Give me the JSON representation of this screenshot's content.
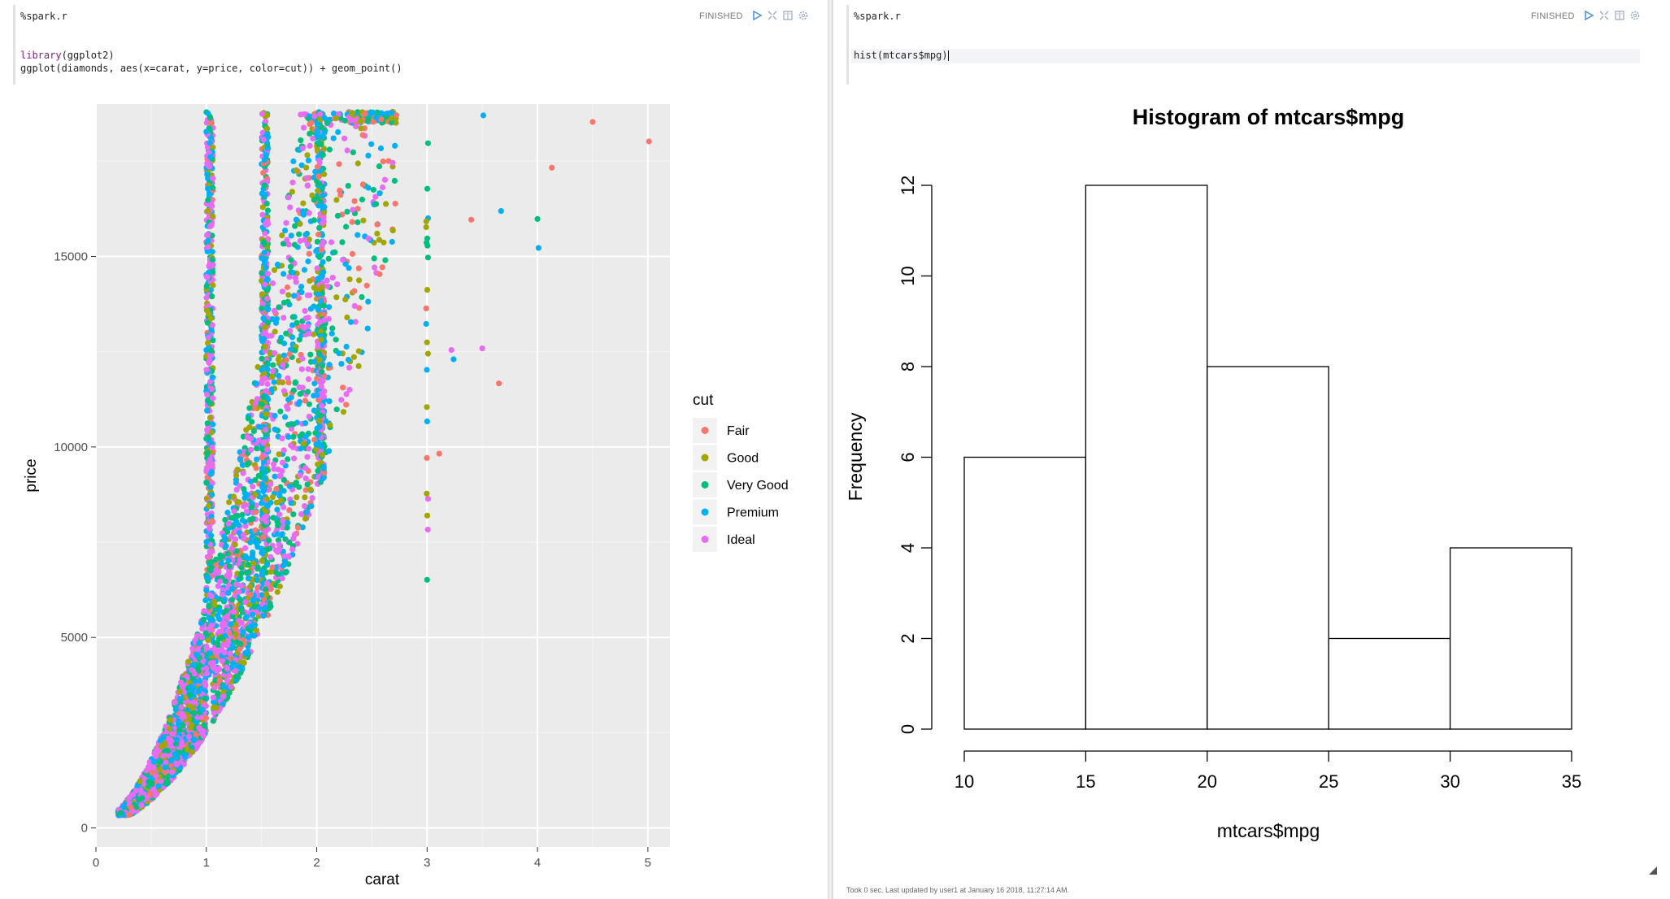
{
  "left_paragraph": {
    "interpreter": "%spark.r",
    "status": "FINISHED",
    "code": {
      "line1_fn": "library",
      "line1_rest": "(ggplot2)",
      "line2": "ggplot(diamonds, aes(x=carat, y=price, color=cut)) + geom_point()"
    },
    "icons": [
      "run-icon",
      "expand-icon",
      "book-icon",
      "gear-icon"
    ]
  },
  "right_paragraph": {
    "interpreter": "%spark.r",
    "status": "FINISHED",
    "code": {
      "line1": "hist(mtcars$mpg)"
    },
    "icons": [
      "run-icon",
      "expand-icon",
      "book-icon",
      "gear-icon"
    ],
    "footer": "Took 0 sec. Last updated by user1 at January 16 2018, 11:27:14 AM."
  },
  "colors": {
    "fair": "#F8766D",
    "good": "#A3A500",
    "very_good": "#00BF7D",
    "premium": "#00B0F6",
    "ideal": "#E76BF3",
    "panel_bg": "#EBEBEB",
    "accent": "#4a90d9"
  },
  "chart_data": [
    {
      "type": "scatter",
      "title": "",
      "xlabel": "carat",
      "ylabel": "price",
      "xlim": [
        0,
        5.2
      ],
      "ylim": [
        -500,
        19000
      ],
      "x_ticks": [
        0,
        1,
        2,
        3,
        4,
        5
      ],
      "y_ticks": [
        0,
        5000,
        10000,
        15000
      ],
      "grid": true,
      "legend": {
        "title": "cut",
        "placement": "right",
        "entries": [
          "Fair",
          "Good",
          "Very Good",
          "Premium",
          "Ideal"
        ]
      },
      "notable_points": [
        {
          "x": 5.01,
          "y": 18018,
          "series": "Fair"
        },
        {
          "x": 4.5,
          "y": 18531,
          "series": "Fair"
        },
        {
          "x": 4.13,
          "y": 17329,
          "series": "Fair"
        },
        {
          "x": 4.0,
          "y": 15984,
          "series": "Very Good"
        },
        {
          "x": 4.01,
          "y": 15223,
          "series": "Premium"
        },
        {
          "x": 3.67,
          "y": 16193,
          "series": "Premium"
        },
        {
          "x": 3.51,
          "y": 18701,
          "series": "Premium"
        },
        {
          "x": 3.4,
          "y": 15964,
          "series": "Fair"
        },
        {
          "x": 3.5,
          "y": 12587,
          "series": "Ideal"
        },
        {
          "x": 3.22,
          "y": 12545,
          "series": "Ideal"
        },
        {
          "x": 3.24,
          "y": 12300,
          "series": "Premium"
        },
        {
          "x": 3.65,
          "y": 11668,
          "series": "Fair"
        },
        {
          "x": 3.11,
          "y": 9823,
          "series": "Fair"
        },
        {
          "x": 3.0,
          "y": 6512,
          "series": "Very Good"
        }
      ]
    },
    {
      "type": "bar",
      "title": "Histogram of mtcars$mpg",
      "xlabel": "mtcars$mpg",
      "ylabel": "Frequency",
      "bins": [
        [
          10,
          15
        ],
        [
          15,
          20
        ],
        [
          20,
          25
        ],
        [
          25,
          30
        ],
        [
          30,
          35
        ]
      ],
      "values": [
        6,
        12,
        8,
        2,
        4
      ],
      "x_ticks": [
        10,
        15,
        20,
        25,
        30,
        35
      ],
      "y_ticks": [
        0,
        2,
        4,
        6,
        8,
        10,
        12
      ],
      "xlim": [
        10,
        35
      ],
      "ylim": [
        0,
        12
      ]
    }
  ]
}
